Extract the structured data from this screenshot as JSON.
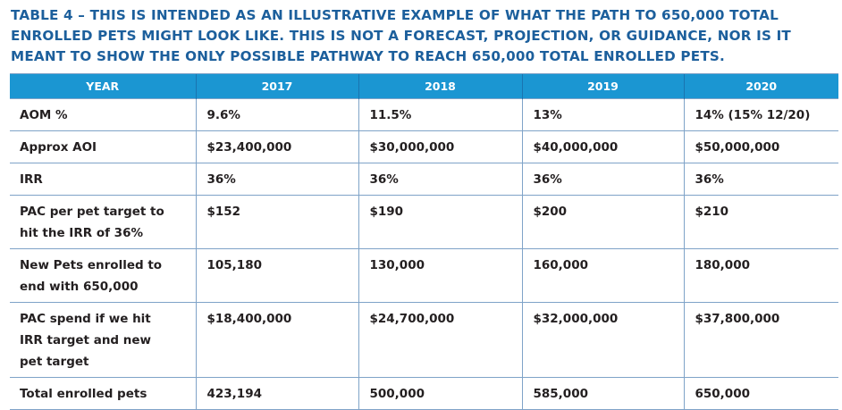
{
  "title": "TABLE 4 – THIS IS INTENDED AS AN ILLUSTRATIVE EXAMPLE OF WHAT THE PATH TO 650,000 TOTAL ENROLLED PETS MIGHT LOOK LIKE. THIS IS NOT A FORECAST, PROJECTION, OR GUIDANCE, NOR IS IT MEANT TO SHOW THE ONLY POSSIBLE PATHWAY TO REACH 650,000 TOTAL ENROLLED PETS.",
  "headers": [
    "YEAR",
    "2017",
    "2018",
    "2019",
    "2020"
  ],
  "rows": [
    [
      "AOM %",
      "9.6%",
      "11.5%",
      "13%",
      "14% (15% 12/20)"
    ],
    [
      "Approx AOI",
      "$23,400,000",
      "$30,000,000",
      "$40,000,000",
      "$50,000,000"
    ],
    [
      "IRR",
      "36%",
      "36%",
      "36%",
      "36%"
    ],
    [
      "PAC per pet target to hit the IRR of 36%",
      "$152",
      "$190",
      "$200",
      "$210"
    ],
    [
      "New Pets enrolled to end with 650,000",
      "105,180",
      "130,000",
      "160,000",
      "180,000"
    ],
    [
      "PAC spend if we hit IRR target and new pet target",
      "$18,400,000",
      "$24,700,000",
      "$32,000,000",
      "$37,800,000"
    ],
    [
      "Total enrolled pets",
      "423,194",
      "500,000",
      "585,000",
      "650,000"
    ]
  ],
  "colors": {
    "title": "#1c5f9c",
    "header_bg": "#1b96d2",
    "grid": "#7fa3c8"
  }
}
